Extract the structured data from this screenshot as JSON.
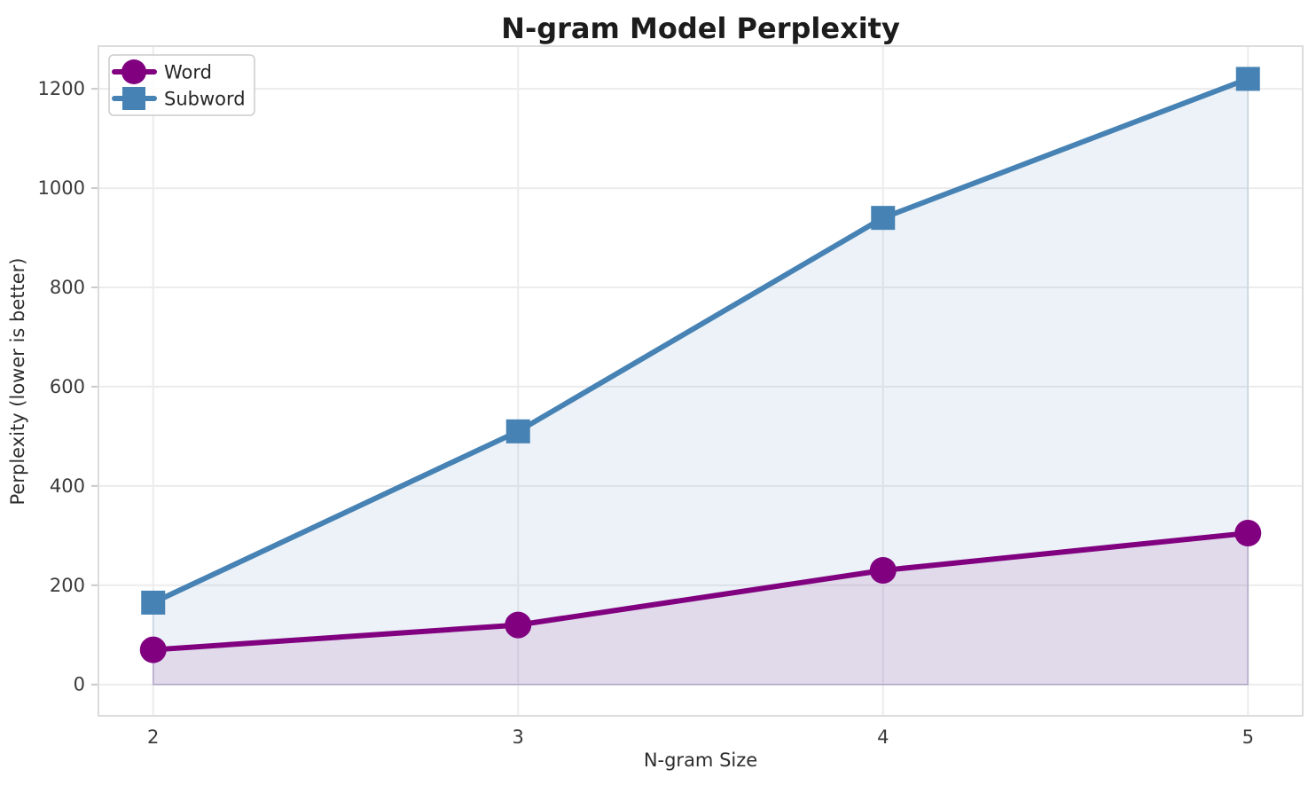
{
  "chart_data": {
    "type": "line",
    "title": "N-gram Model Perplexity",
    "xlabel": "N-gram Size",
    "ylabel": "Perplexity (lower is better)",
    "x": [
      2,
      3,
      4,
      5
    ],
    "series": [
      {
        "name": "Word",
        "values": [
          70,
          120,
          230,
          305
        ],
        "color": "#800080",
        "marker": "circle",
        "fill_to_zero": true,
        "fill_alpha": 0.1
      },
      {
        "name": "Subword",
        "values": [
          165,
          510,
          940,
          1220
        ],
        "color": "#4682B4",
        "marker": "square",
        "fill_to_zero": true,
        "fill_alpha": 0.1
      }
    ],
    "xticks": [
      2,
      3,
      4,
      5
    ],
    "yticks": [
      0,
      200,
      400,
      600,
      800,
      1000,
      1200
    ],
    "xlim": [
      1.85,
      5.15
    ],
    "ylim": [
      -63,
      1286
    ],
    "grid": true,
    "legend_position": "upper left",
    "legend_entries": [
      "Word",
      "Subword"
    ]
  }
}
